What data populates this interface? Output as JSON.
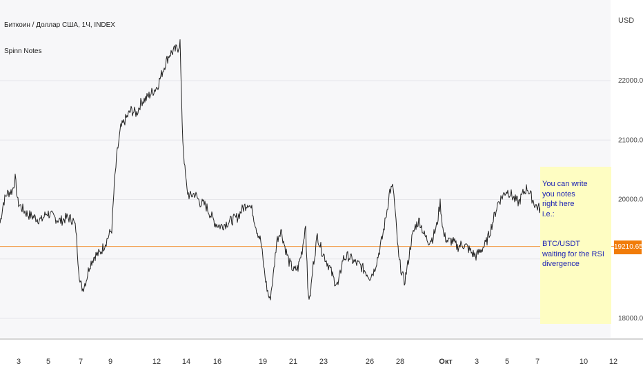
{
  "header": {
    "title": "Биткоин / Доллар США, 1Ч, INDEX",
    "indicator": "Spinn Notes",
    "currency": "USD"
  },
  "note": {
    "text": "You can write\nyou notes\nright here\ni.e.:\n\n\nBTC/USDT\nwaiting for the RSI divergence",
    "color": "#1e24b4",
    "background": "#fefdc2"
  },
  "price_line": {
    "value": 19210.65,
    "label": "19210.65",
    "color": "#f17c0a"
  },
  "chart_data": {
    "type": "line",
    "title": "Биткоин / Доллар США, 1Ч, INDEX",
    "xlabel": "",
    "ylabel": "USD",
    "grid": true,
    "ylim": [
      17750,
      22850
    ],
    "y_ticks": [
      "22000.00",
      "21000.00",
      "20000.00",
      "18000.00"
    ],
    "y_tick_values": [
      22000,
      21000,
      20000,
      18000
    ],
    "x_ticks": [
      "3",
      "5",
      "7",
      "9",
      "12",
      "14",
      "16",
      "19",
      "21",
      "23",
      "26",
      "28",
      "Окт",
      "3",
      "5",
      "7",
      "10",
      "12"
    ],
    "x_tick_positions": [
      27,
      70,
      117,
      160,
      227,
      270,
      315,
      381,
      425,
      469,
      536,
      580,
      646,
      691,
      735,
      779,
      846,
      889
    ],
    "series": [
      {
        "values": [
          [
            0,
            19600
          ],
          [
            5,
            19950
          ],
          [
            10,
            20100
          ],
          [
            18,
            20150
          ],
          [
            22,
            20350
          ],
          [
            26,
            19950
          ],
          [
            32,
            19850
          ],
          [
            40,
            19750
          ],
          [
            50,
            19700
          ],
          [
            60,
            19650
          ],
          [
            68,
            19780
          ],
          [
            78,
            19700
          ],
          [
            88,
            19640
          ],
          [
            98,
            19700
          ],
          [
            106,
            19650
          ],
          [
            110,
            19500
          ],
          [
            113,
            19000
          ],
          [
            116,
            18600
          ],
          [
            120,
            18500
          ],
          [
            125,
            18650
          ],
          [
            130,
            18900
          ],
          [
            137,
            19050
          ],
          [
            145,
            19100
          ],
          [
            152,
            19250
          ],
          [
            158,
            19400
          ],
          [
            162,
            19500
          ],
          [
            166,
            20300
          ],
          [
            170,
            20800
          ],
          [
            175,
            21200
          ],
          [
            182,
            21350
          ],
          [
            190,
            21500
          ],
          [
            198,
            21450
          ],
          [
            205,
            21650
          ],
          [
            212,
            21700
          ],
          [
            220,
            21800
          ],
          [
            228,
            21900
          ],
          [
            234,
            22100
          ],
          [
            240,
            22300
          ],
          [
            246,
            22450
          ],
          [
            252,
            22500
          ],
          [
            258,
            22550
          ],
          [
            261,
            22650
          ],
          [
            263,
            21700
          ],
          [
            265,
            21000
          ],
          [
            268,
            20500
          ],
          [
            271,
            20150
          ],
          [
            275,
            20050
          ],
          [
            282,
            20100
          ],
          [
            290,
            19950
          ],
          [
            298,
            19900
          ],
          [
            305,
            19750
          ],
          [
            312,
            19600
          ],
          [
            320,
            19550
          ],
          [
            328,
            19600
          ],
          [
            336,
            19650
          ],
          [
            344,
            19700
          ],
          [
            352,
            19850
          ],
          [
            360,
            19950
          ],
          [
            366,
            19800
          ],
          [
            372,
            19500
          ],
          [
            378,
            19300
          ],
          [
            383,
            18800
          ],
          [
            387,
            18500
          ],
          [
            391,
            18300
          ],
          [
            396,
            18700
          ],
          [
            401,
            19300
          ],
          [
            407,
            19500
          ],
          [
            413,
            19200
          ],
          [
            419,
            18950
          ],
          [
            426,
            18800
          ],
          [
            432,
            18850
          ],
          [
            438,
            19150
          ],
          [
            443,
            19600
          ],
          [
            446,
            18500
          ],
          [
            449,
            18300
          ],
          [
            454,
            18900
          ],
          [
            460,
            19400
          ],
          [
            466,
            19150
          ],
          [
            472,
            19000
          ],
          [
            478,
            18850
          ],
          [
            484,
            18650
          ],
          [
            490,
            18550
          ],
          [
            497,
            19000
          ],
          [
            505,
            19050
          ],
          [
            513,
            18950
          ],
          [
            521,
            18900
          ],
          [
            529,
            18800
          ],
          [
            536,
            18700
          ],
          [
            542,
            18800
          ],
          [
            548,
            19050
          ],
          [
            554,
            19350
          ],
          [
            560,
            19750
          ],
          [
            565,
            20150
          ],
          [
            570,
            20200
          ],
          [
            574,
            19600
          ],
          [
            578,
            19000
          ],
          [
            582,
            18800
          ],
          [
            586,
            18600
          ],
          [
            591,
            18900
          ],
          [
            596,
            19300
          ],
          [
            602,
            19550
          ],
          [
            608,
            19650
          ],
          [
            615,
            19400
          ],
          [
            621,
            19300
          ],
          [
            627,
            19350
          ],
          [
            633,
            19550
          ],
          [
            638,
            19950
          ],
          [
            643,
            19400
          ],
          [
            649,
            19300
          ],
          [
            656,
            19300
          ],
          [
            663,
            19200
          ],
          [
            670,
            19250
          ],
          [
            677,
            19200
          ],
          [
            684,
            19100
          ],
          [
            690,
            19050
          ],
          [
            697,
            19150
          ],
          [
            704,
            19250
          ],
          [
            710,
            19450
          ],
          [
            716,
            19700
          ],
          [
            722,
            19950
          ],
          [
            728,
            20050
          ],
          [
            734,
            20150
          ],
          [
            740,
            20100
          ],
          [
            746,
            20000
          ],
          [
            752,
            19950
          ],
          [
            758,
            20100
          ],
          [
            764,
            20200
          ],
          [
            770,
            20050
          ],
          [
            776,
            19900
          ],
          [
            782,
            19850
          ],
          [
            790,
            19750
          ],
          [
            798,
            19650
          ],
          [
            806,
            19550
          ],
          [
            814,
            19500
          ],
          [
            822,
            19400
          ],
          [
            830,
            19450
          ],
          [
            838,
            19500
          ],
          [
            846,
            19450
          ],
          [
            852,
            19350
          ],
          [
            858,
            19250
          ],
          [
            863,
            19130
          ]
        ],
        "color": "#222222"
      }
    ]
  }
}
